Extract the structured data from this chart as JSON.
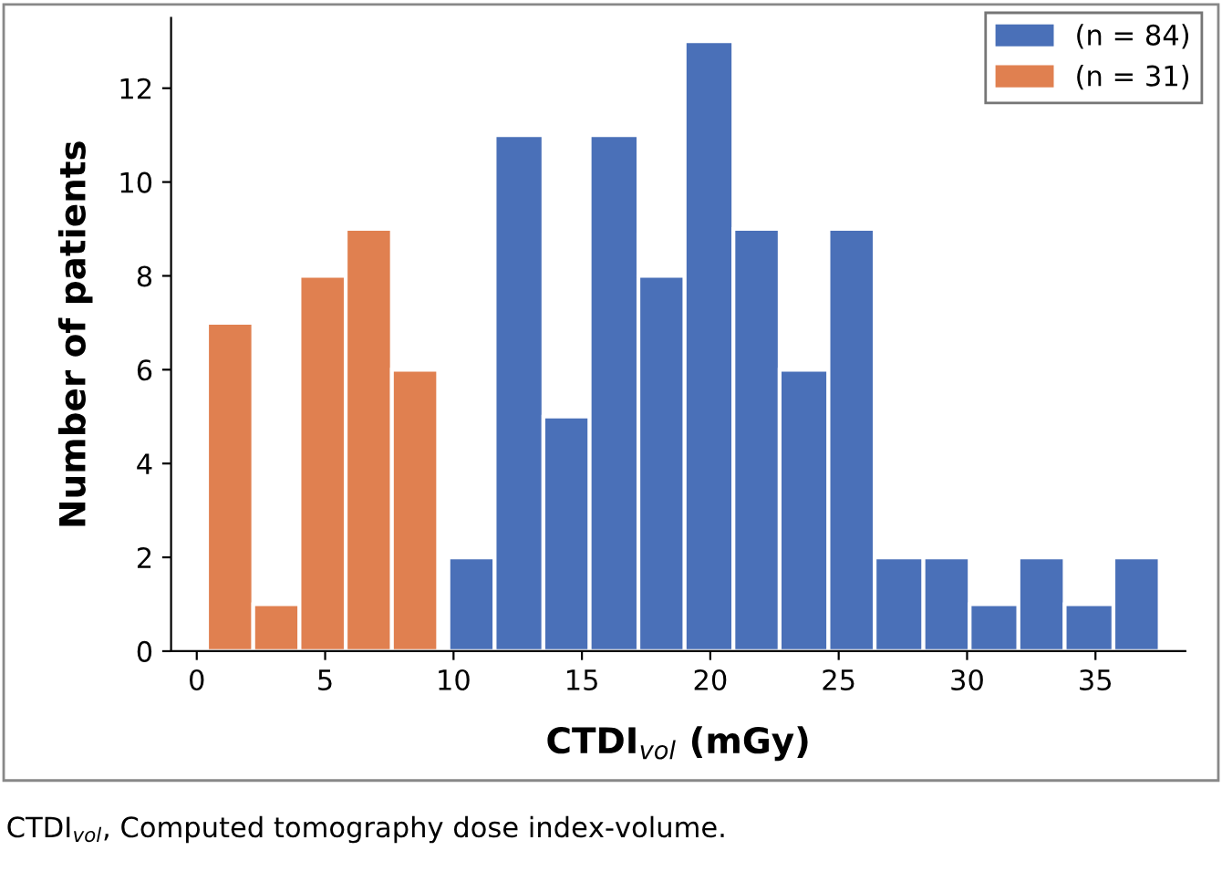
{
  "chart_data": {
    "type": "histogram",
    "xlabel": "CTDI$_{vol}$ (mGy)",
    "ylabel": "Number of patients",
    "bins": [
      0.4,
      2.2,
      4.0,
      5.8,
      7.6,
      9.4,
      9.8,
      11.6,
      13.5,
      15.3,
      17.2,
      19.0,
      20.9,
      22.7,
      24.6,
      26.4,
      28.3,
      30.1,
      32.0,
      33.8,
      35.7,
      37.5
    ],
    "series": [
      {
        "name": "(n = 84)",
        "color": "#4a70b8",
        "values": [
          null,
          null,
          null,
          null,
          null,
          null,
          2,
          11,
          5,
          11,
          8,
          13,
          9,
          6,
          9,
          2,
          2,
          1,
          2,
          1,
          2
        ]
      },
      {
        "name": "(n = 31)",
        "color": "#e08050",
        "values": [
          7,
          1,
          8,
          9,
          6,
          null,
          null,
          null,
          null,
          null,
          null,
          null,
          null,
          null,
          null,
          null,
          null,
          null,
          null,
          null,
          null
        ]
      }
    ],
    "xlim": [
      -1,
      38.5
    ],
    "xticks": [
      0,
      5,
      10,
      15,
      20,
      25,
      30,
      35
    ],
    "ylim": [
      0,
      13.5
    ],
    "yticks": [
      0,
      2,
      4,
      6,
      8,
      10,
      12
    ],
    "grid": false,
    "legend": "top right",
    "annotations": [
      "CTDI$_{vol}$, Computed tomography dose index-volume."
    ]
  }
}
